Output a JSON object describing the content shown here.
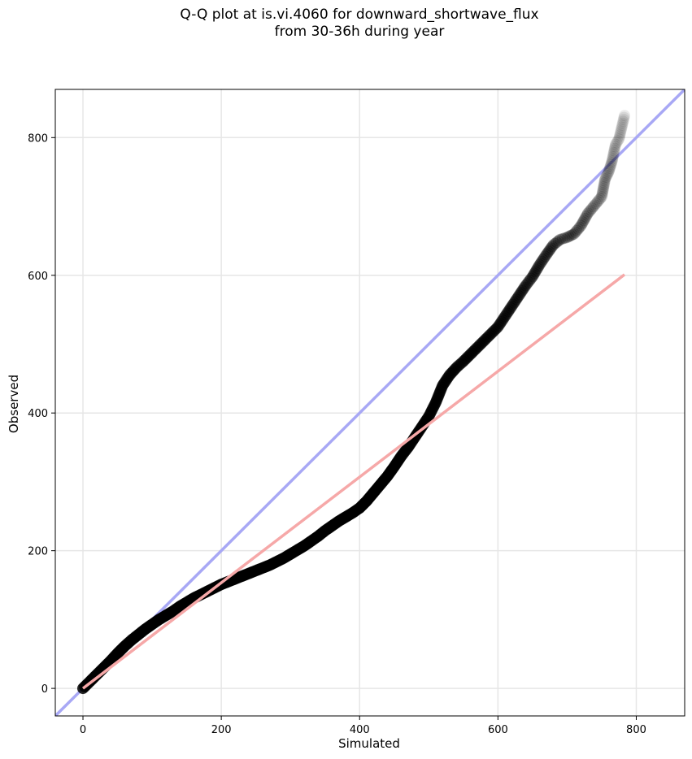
{
  "chart_data": {
    "type": "scatter",
    "title_lines": [
      "Q-Q plot at is.vi.4060 for downward_shortwave_flux",
      "from 30-36h during year"
    ],
    "xlabel": "Simulated",
    "ylabel": "Observed",
    "xlim": [
      -40,
      870
    ],
    "ylim": [
      -40,
      870
    ],
    "xticks": [
      0,
      200,
      400,
      600,
      800
    ],
    "yticks": [
      0,
      200,
      400,
      600,
      800
    ],
    "grid": true,
    "reference_lines": [
      {
        "kind": "one-to-one",
        "color": "#a8a8f5",
        "from": [
          -40,
          -40
        ],
        "to": [
          870,
          870
        ]
      },
      {
        "kind": "fit",
        "color": "#f6a8a8",
        "from": [
          0,
          0
        ],
        "to": [
          783,
          601
        ]
      }
    ],
    "quantiles": {
      "x": [
        0,
        5,
        10,
        20,
        30,
        40,
        50,
        60,
        70,
        80,
        90,
        100,
        110,
        120,
        130,
        140,
        150,
        160,
        170,
        180,
        190,
        200,
        210,
        220,
        230,
        240,
        250,
        260,
        270,
        280,
        290,
        300,
        310,
        320,
        330,
        340,
        350,
        360,
        370,
        380,
        390,
        400,
        410,
        420,
        430,
        440,
        450,
        460,
        470,
        480,
        490,
        500,
        510,
        520,
        530,
        540,
        550,
        560,
        570,
        580,
        590,
        600,
        610,
        620,
        630,
        640,
        650,
        660,
        670,
        680,
        690,
        700,
        710,
        720,
        730,
        740,
        750,
        755,
        760,
        765,
        770,
        775,
        783
      ],
      "y": [
        0,
        5,
        10,
        20,
        30,
        40,
        51,
        61,
        70,
        78,
        86,
        93,
        100,
        106,
        112,
        119,
        125,
        131,
        136,
        141,
        146,
        151,
        155,
        159,
        163,
        167,
        171,
        175,
        179,
        184,
        189,
        195,
        201,
        207,
        214,
        221,
        229,
        236,
        243,
        249,
        255,
        262,
        272,
        284,
        296,
        308,
        322,
        337,
        350,
        365,
        380,
        395,
        415,
        440,
        455,
        466,
        475,
        485,
        495,
        505,
        515,
        525,
        540,
        555,
        570,
        585,
        598,
        615,
        630,
        644,
        652,
        655,
        660,
        672,
        690,
        702,
        714,
        740,
        750,
        766,
        790,
        798,
        832
      ]
    },
    "point_color": "#000000"
  }
}
